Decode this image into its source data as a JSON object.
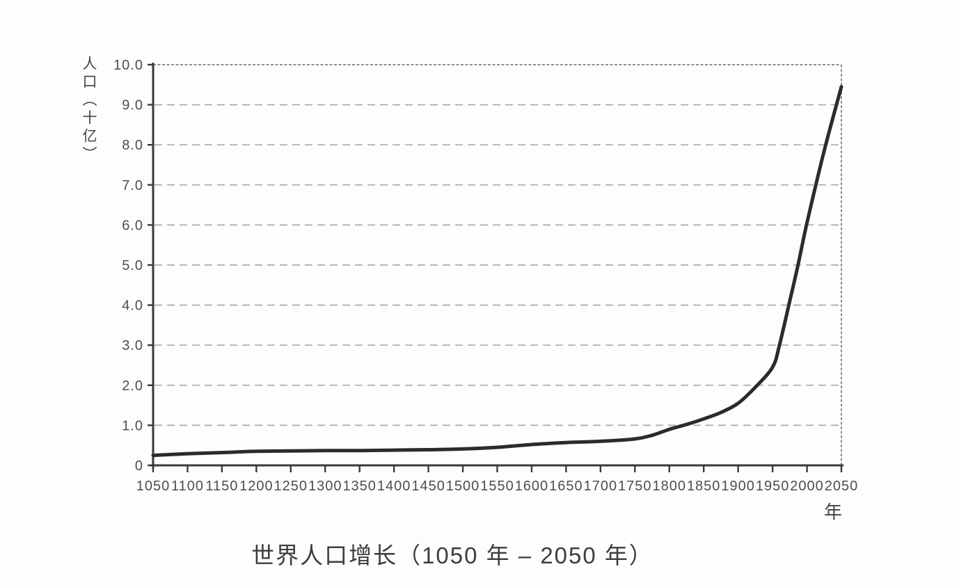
{
  "chart_data": {
    "type": "line",
    "title": "世界人口增长（1050 年 – 2050 年）",
    "xlabel": "年",
    "ylabel": "人口（十亿）",
    "xlim": [
      1050,
      2050
    ],
    "ylim": [
      0,
      10
    ],
    "x_ticks": [
      1050,
      1100,
      1150,
      1200,
      1250,
      1300,
      1350,
      1400,
      1450,
      1500,
      1550,
      1600,
      1650,
      1700,
      1750,
      1800,
      1850,
      1900,
      1950,
      2000,
      2050
    ],
    "y_ticks": [
      {
        "v": 10,
        "label": "10.0"
      },
      {
        "v": 9,
        "label": "9.0"
      },
      {
        "v": 8,
        "label": "8.0"
      },
      {
        "v": 7,
        "label": "7.0"
      },
      {
        "v": 6,
        "label": "6.0"
      },
      {
        "v": 5,
        "label": "5.0"
      },
      {
        "v": 4,
        "label": "4.0"
      },
      {
        "v": 3,
        "label": "3.0"
      },
      {
        "v": 2,
        "label": "2.0"
      },
      {
        "v": 1,
        "label": "1.0"
      },
      {
        "v": 0,
        "label": "0"
      }
    ],
    "grid": "horizontal-dashed",
    "legend": "none",
    "series": [
      {
        "points": [
          [
            1050,
            0.25
          ],
          [
            1100,
            0.29
          ],
          [
            1150,
            0.32
          ],
          [
            1200,
            0.35
          ],
          [
            1250,
            0.36
          ],
          [
            1300,
            0.37
          ],
          [
            1350,
            0.37
          ],
          [
            1400,
            0.38
          ],
          [
            1450,
            0.39
          ],
          [
            1500,
            0.41
          ],
          [
            1550,
            0.45
          ],
          [
            1600,
            0.52
          ],
          [
            1650,
            0.57
          ],
          [
            1700,
            0.6
          ],
          [
            1750,
            0.66
          ],
          [
            1775,
            0.75
          ],
          [
            1800,
            0.9
          ],
          [
            1825,
            1.02
          ],
          [
            1850,
            1.16
          ],
          [
            1875,
            1.32
          ],
          [
            1900,
            1.55
          ],
          [
            1925,
            1.95
          ],
          [
            1950,
            2.45
          ],
          [
            1960,
            3.0
          ],
          [
            1975,
            4.1
          ],
          [
            1987,
            5.0
          ],
          [
            2000,
            6.05
          ],
          [
            2025,
            7.85
          ],
          [
            2050,
            9.45
          ]
        ]
      }
    ],
    "colors": {
      "line": "#2c2b29",
      "axis": "#3b3936",
      "grid": "#aeaba6",
      "border": "#908d89",
      "tick_text": "#504d49",
      "title_text": "#3f3d3a"
    }
  }
}
